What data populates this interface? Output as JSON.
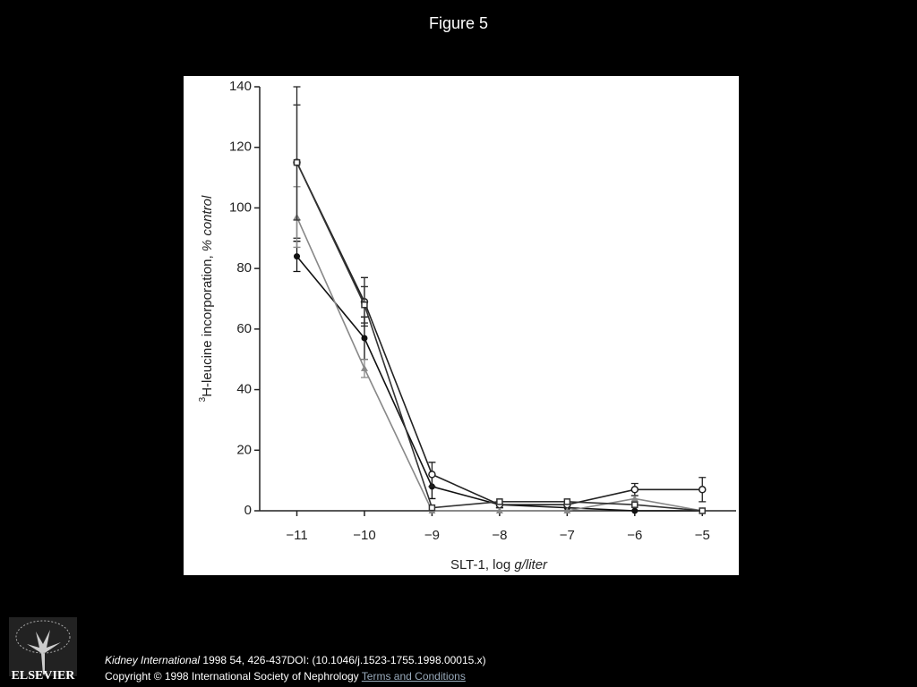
{
  "header": {
    "title": "Figure 5"
  },
  "chart_data": {
    "type": "line",
    "ylabel": {
      "sup": "3",
      "main": "H-leucine incorporation, ",
      "italic": "% control"
    },
    "xlabel": {
      "main": "SLT-1, log ",
      "italic": "g/liter"
    },
    "x": [
      -11,
      -10,
      -9,
      -8,
      -7,
      -6,
      -5
    ],
    "xlim": [
      -11.55,
      -4.5
    ],
    "xticks": [
      {
        "value": -11,
        "label": "−11"
      },
      {
        "value": -10,
        "label": "−10"
      },
      {
        "value": -9,
        "label": "−9"
      },
      {
        "value": -8,
        "label": "−8"
      },
      {
        "value": -7,
        "label": "−7"
      },
      {
        "value": -6,
        "label": "−6"
      },
      {
        "value": -5,
        "label": "−5"
      }
    ],
    "ylim": [
      0,
      140
    ],
    "yticks": [
      0,
      20,
      40,
      60,
      80,
      100,
      120,
      140
    ],
    "series": [
      {
        "color": "#111111",
        "marker": "circle-filled",
        "values": [
          84,
          57,
          8,
          2,
          1,
          0,
          0
        ],
        "errors": [
          5,
          7,
          4,
          1,
          1,
          0,
          0
        ]
      },
      {
        "color": "#222222",
        "marker": "circle-open",
        "values": [
          115,
          69,
          12,
          2,
          2,
          7,
          7
        ],
        "errors": [
          25,
          8,
          4,
          1,
          1,
          2,
          4
        ]
      },
      {
        "color": "#888888",
        "marker": "triangle",
        "values": [
          97,
          47,
          0,
          0,
          0,
          4,
          0
        ],
        "errors": [
          10,
          3,
          0,
          0,
          0,
          0,
          0
        ]
      },
      {
        "color": "#333333",
        "marker": "square-open",
        "values": [
          115,
          68,
          1,
          3,
          3,
          2,
          0
        ],
        "errors": [
          19,
          6,
          0,
          0,
          0,
          0,
          0
        ]
      }
    ]
  },
  "footer": {
    "journal": "Kidney International",
    "citation": " 1998 54, 426-437DOI: (10.1046/j.1523-1755.1998.00015.x)",
    "copyright": "Copyright © 1998 International Society of Nephrology ",
    "link": "Terms and Conditions",
    "logo": "ELSEVIER"
  }
}
